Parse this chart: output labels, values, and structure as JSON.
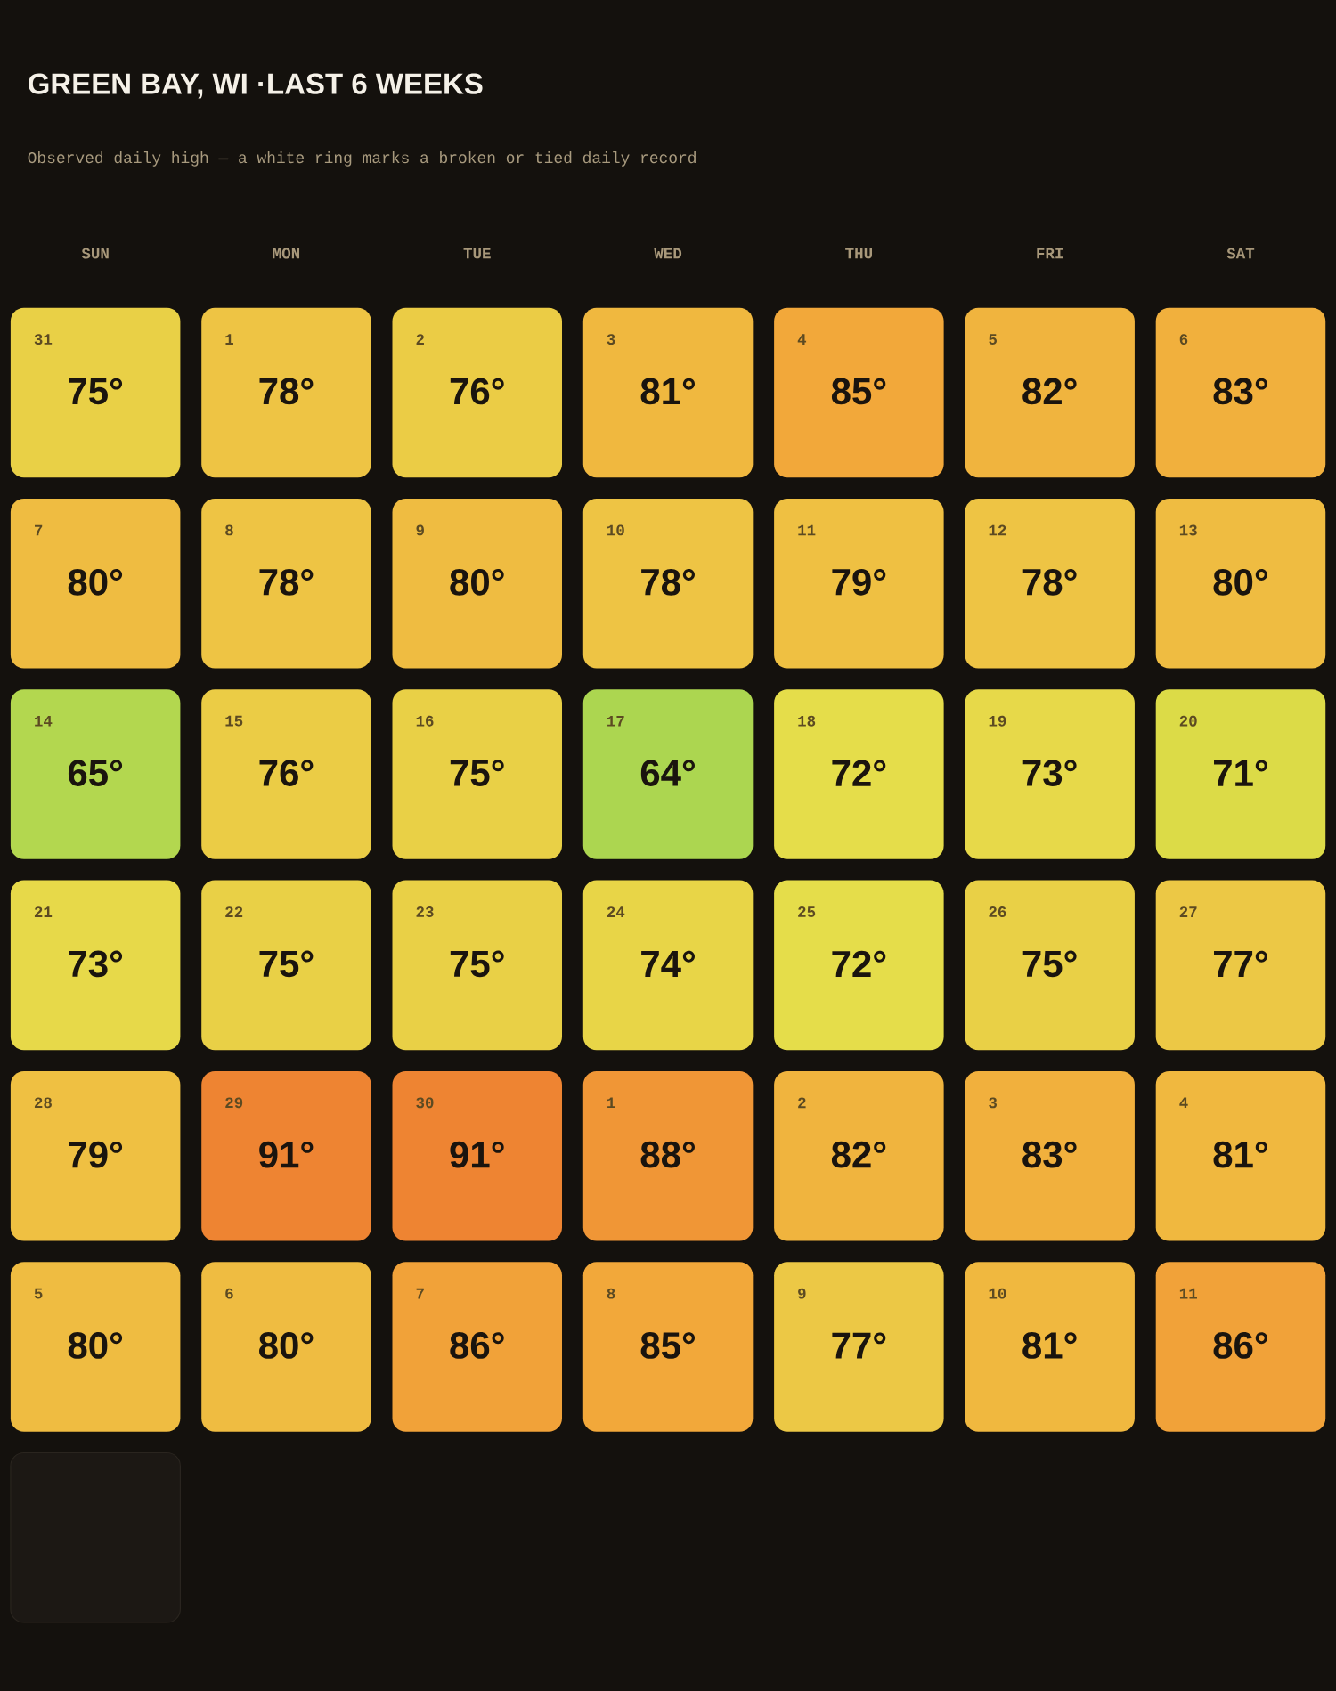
{
  "chart_data": {
    "type": "heatmap",
    "title": "GREEN BAY, WI ·LAST 6 WEEKS",
    "subtitle": "Observed daily high — a white ring marks a broken or tied daily record",
    "categories": [
      "SUN",
      "MON",
      "TUE",
      "WED",
      "THU",
      "FRI",
      "SAT"
    ],
    "y_categories": [
      null,
      null,
      null,
      null,
      null,
      null
    ],
    "cells": [
      [
        75,
        78,
        76,
        81,
        85,
        82,
        83
      ],
      [
        80,
        78,
        80,
        78,
        79,
        78,
        80
      ],
      [
        65,
        76,
        75,
        64,
        72,
        73,
        71
      ],
      [
        73,
        75,
        75,
        74,
        72,
        75,
        77
      ],
      [
        79,
        91,
        91,
        88,
        82,
        83,
        81
      ],
      [
        80,
        80,
        86,
        85,
        77,
        81,
        86
      ]
    ],
    "cell_labels": [
      [
        "75°",
        "78°",
        "76°",
        "81°",
        "85°",
        "82°",
        "83°"
      ],
      [
        "80°",
        "78°",
        "80°",
        "78°",
        "79°",
        "78°",
        "80°"
      ],
      [
        "65°",
        "76°",
        "75°",
        "64°",
        "72°",
        "73°",
        "71°"
      ],
      [
        "73°",
        "75°",
        "75°",
        "74°",
        "72°",
        "75°",
        "77°"
      ],
      [
        "79°",
        "91°",
        "91°",
        "88°",
        "82°",
        "83°",
        "81°"
      ],
      [
        "80°",
        "80°",
        "86°",
        "85°",
        "77°",
        "81°",
        "86°"
      ]
    ],
    "annotations": [
      "31",
      "1",
      "2",
      "3",
      "4",
      "5",
      "6",
      "7",
      "8",
      "9",
      "10",
      "11",
      "12",
      "13",
      "14",
      "15",
      "16",
      "17",
      "18",
      "19",
      "20",
      "21",
      "22",
      "23",
      "24",
      "25",
      "26",
      "27",
      "28",
      "29",
      "30",
      "1",
      "2",
      "3",
      "4",
      "5",
      "6",
      "7",
      "8",
      "9",
      "10",
      "11"
    ]
  }
}
